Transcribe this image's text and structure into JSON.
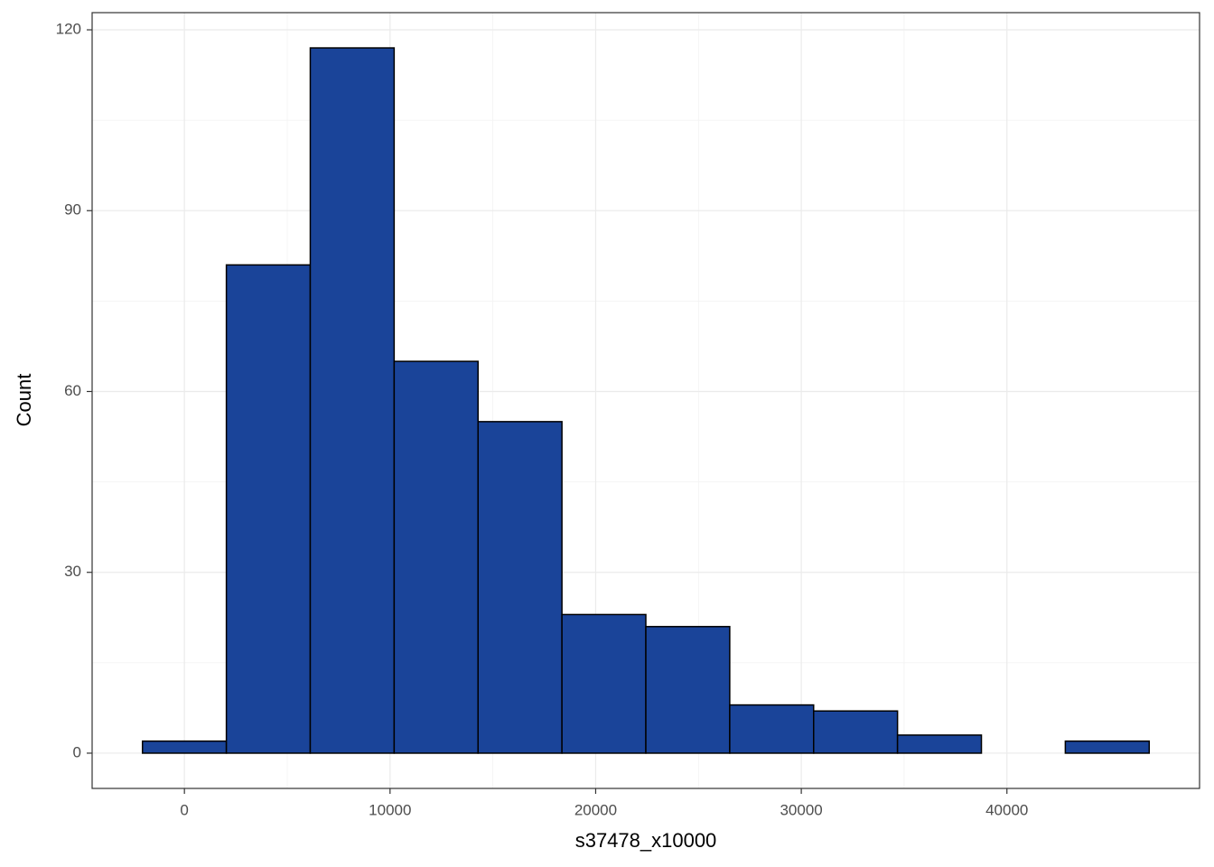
{
  "chart_data": {
    "type": "histogram",
    "x_label": "s37478_x10000",
    "y_label": "Count",
    "bins": [
      -2040,
      2040,
      6120,
      10200,
      14280,
      18360,
      22440,
      26520,
      30600,
      34680,
      38760,
      42840,
      46920
    ],
    "values": [
      2,
      81,
      117,
      65,
      55,
      23,
      21,
      8,
      7,
      3,
      0,
      2
    ],
    "color": "#1a4499",
    "edge_color": "#000000",
    "xlim": [
      -4488,
      49368
    ],
    "ylim": [
      -5.85,
      122.85
    ],
    "xticks": [
      0,
      10000,
      20000,
      30000,
      40000
    ],
    "yticks": [
      0,
      30,
      60,
      90,
      120
    ],
    "grid": true
  }
}
